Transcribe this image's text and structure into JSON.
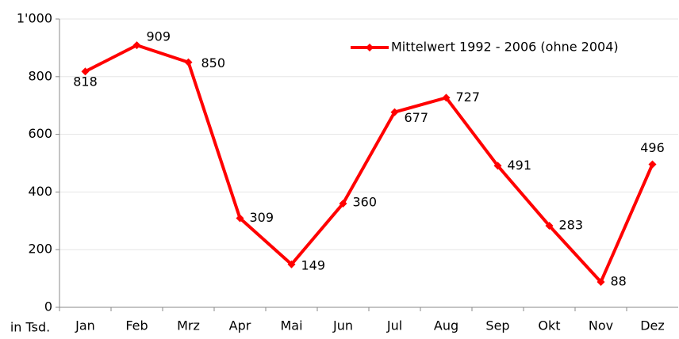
{
  "chart_data": {
    "type": "line",
    "y_label": "in Tsd.",
    "categories": [
      "Jan",
      "Feb",
      "Mrz",
      "Apr",
      "Mai",
      "Jun",
      "Jul",
      "Aug",
      "Sep",
      "Okt",
      "Nov",
      "Dez"
    ],
    "series": [
      {
        "name": "Mittelwert 1992 - 2006 (ohne 2004)",
        "color": "#ff0000",
        "values": [
          818,
          909,
          850,
          309,
          149,
          360,
          677,
          727,
          491,
          283,
          88,
          496
        ]
      }
    ],
    "ylim": [
      0,
      1000
    ],
    "yticks": [
      0,
      200,
      400,
      600,
      800,
      {
        "value": 1000,
        "label": "1'000"
      }
    ],
    "grid": true,
    "legend": "top-right"
  }
}
